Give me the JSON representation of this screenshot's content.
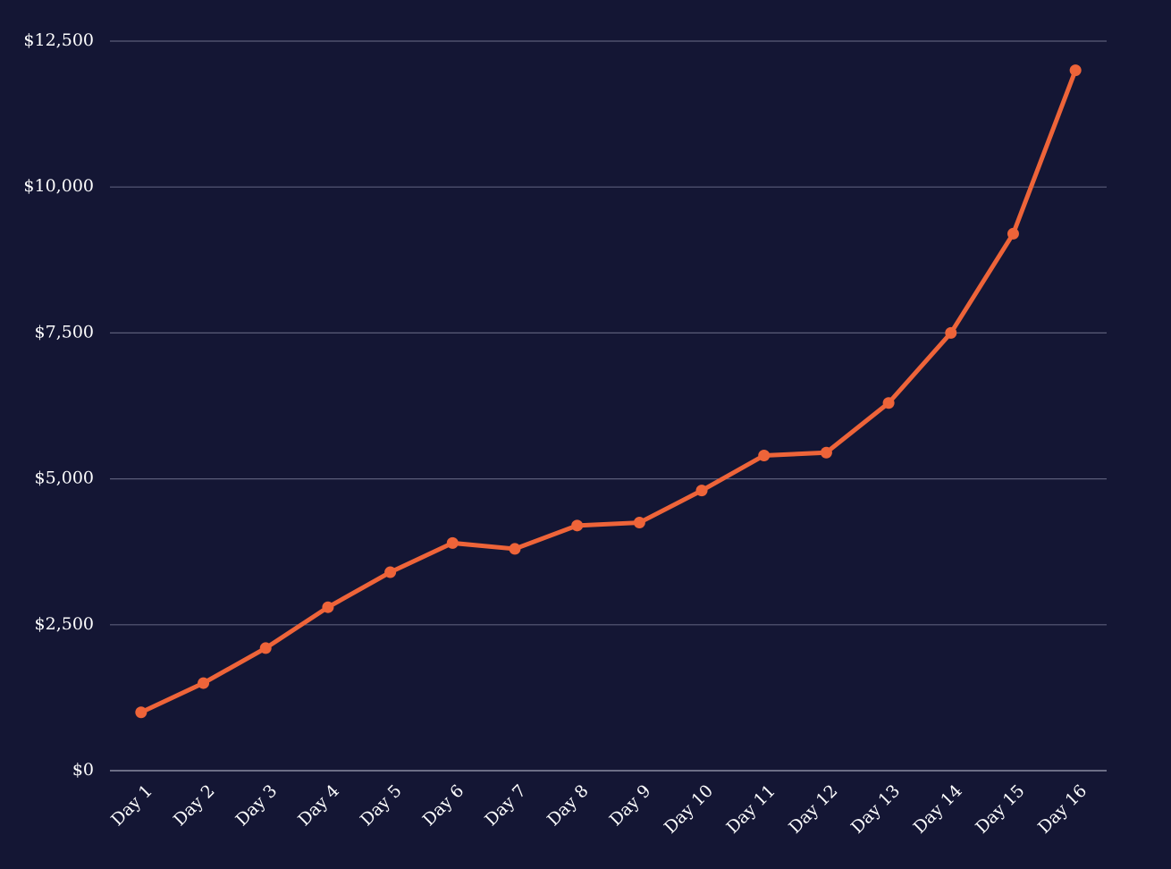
{
  "chart_data": {
    "type": "line",
    "categories": [
      "Day 1",
      "Day 2",
      "Day 3",
      "Day 4",
      "Day 5",
      "Day 6",
      "Day 7",
      "Day 8",
      "Day 9",
      "Day 10",
      "Day 11",
      "Day 12",
      "Day 13",
      "Day 14",
      "Day 15",
      "Day 16"
    ],
    "series": [
      {
        "color": "#ee6439",
        "values": [
          1000,
          1500,
          2100,
          2800,
          3400,
          3900,
          3800,
          4200,
          4250,
          4800,
          5400,
          5450,
          6300,
          7500,
          9200,
          12000
        ]
      }
    ],
    "ylim": [
      0,
      12500
    ],
    "yticks": [
      {
        "value": 0,
        "label": "$0"
      },
      {
        "value": 2500,
        "label": "$2,500"
      },
      {
        "value": 5000,
        "label": "$5,000"
      },
      {
        "value": 7500,
        "label": "$7,500"
      },
      {
        "value": 10000,
        "label": "$10,000"
      },
      {
        "value": 12500,
        "label": "$12,500"
      }
    ],
    "grid": true
  }
}
